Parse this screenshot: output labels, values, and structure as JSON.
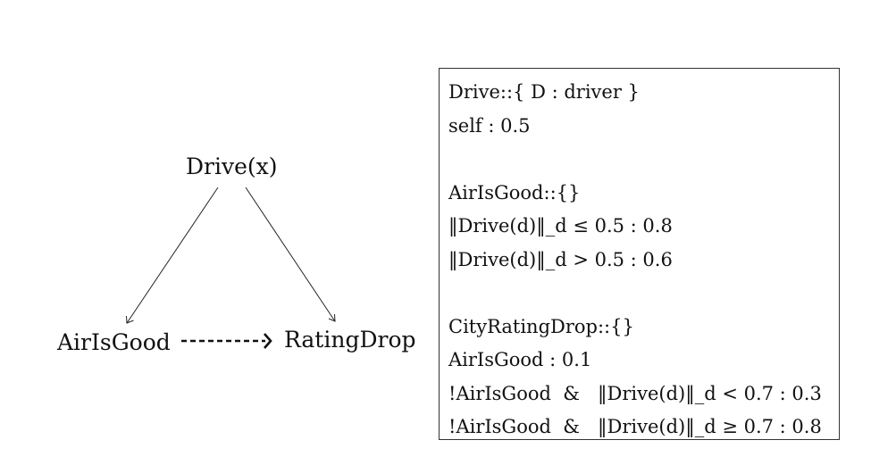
{
  "diagram": {
    "nodes": {
      "drive": "Drive(x)",
      "air": "AirIsGood",
      "rating": "RatingDrop"
    },
    "edges": [
      {
        "from": "drive",
        "to": "air",
        "style": "solid"
      },
      {
        "from": "drive",
        "to": "rating",
        "style": "solid"
      },
      {
        "from": "air",
        "to": "rating",
        "style": "dashed"
      }
    ]
  },
  "program": {
    "block1": [
      "Drive::{ D : driver }",
      "self : 0.5"
    ],
    "block2": [
      "AirIsGood::{}",
      "‖Drive(d)‖_d ≤ 0.5 : 0.8",
      "‖Drive(d)‖_d > 0.5 : 0.6"
    ],
    "block3": [
      "CityRatingDrop::{}",
      "AirIsGood : 0.1",
      "!AirIsGood  &   ‖Drive(d)‖_d < 0.7 : 0.3",
      "!AirIsGood  &   ‖Drive(d)‖_d ≥ 0.7 : 0.8"
    ]
  }
}
